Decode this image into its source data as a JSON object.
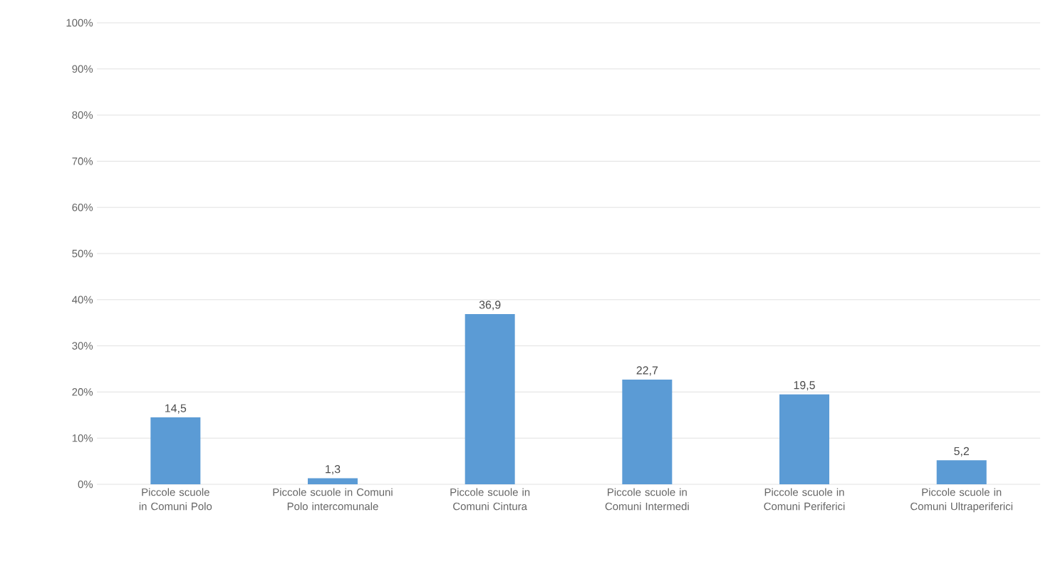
{
  "chart_data": {
    "type": "bar",
    "categories": [
      "Piccole scuole in Comuni Polo",
      "Piccole scuole in Comuni Polo intercomunale",
      "Piccole scuole in Comuni Cintura",
      "Piccole scuole in Comuni Intermedi",
      "Piccole scuole in Comuni Periferici",
      "Piccole scuole in Comuni Ultraperiferici"
    ],
    "values": [
      14.5,
      1.3,
      36.9,
      22.7,
      19.5,
      5.2
    ],
    "value_labels": [
      "14,5",
      "1,3",
      "36,9",
      "22,7",
      "19,5",
      "5,2"
    ],
    "color": "#5b9bd5",
    "ylim": [
      0,
      100
    ],
    "yticks": [
      {
        "value": 0,
        "label": "0%"
      },
      {
        "value": 10,
        "label": "10%"
      },
      {
        "value": 20,
        "label": "20%"
      },
      {
        "value": 30,
        "label": "30%"
      },
      {
        "value": 40,
        "label": "40%"
      },
      {
        "value": 50,
        "label": "50%"
      },
      {
        "value": 60,
        "label": "60%"
      },
      {
        "value": 70,
        "label": "70%"
      },
      {
        "value": 80,
        "label": "80%"
      },
      {
        "value": 90,
        "label": "90%"
      },
      {
        "value": 100,
        "label": "100%"
      }
    ],
    "grid": "y"
  }
}
